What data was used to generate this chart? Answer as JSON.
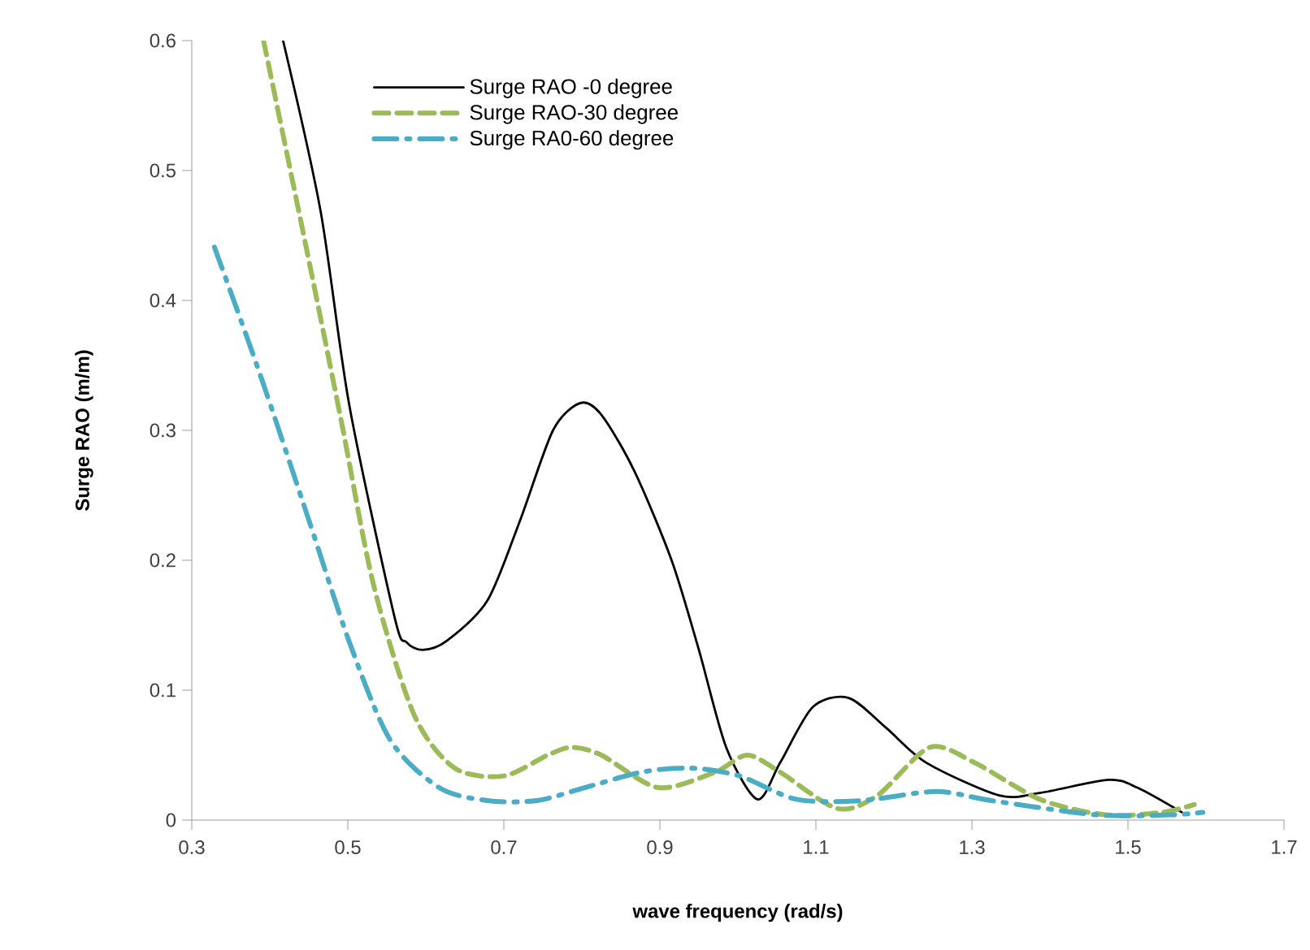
{
  "chart_data": {
    "type": "line",
    "xlabel": "wave frequency (rad/s)",
    "ylabel": "Surge RAO (m/m)",
    "xlim": [
      0.3,
      1.7
    ],
    "xticks": [
      0.3,
      0.5,
      0.7,
      0.9,
      1.1,
      1.3,
      1.5,
      1.7
    ],
    "ylim": [
      0,
      0.6
    ],
    "yticks": [
      0,
      0.1,
      0.2,
      0.3,
      0.4,
      0.5,
      0.6
    ],
    "grid": false,
    "legend": "top",
    "marker": "none",
    "series": [
      {
        "name": "Surge RAO -0 degree",
        "color": "#000000",
        "line_style": "solid",
        "x": [
          0.417,
          0.465,
          0.502,
          0.56,
          0.575,
          0.596,
          0.627,
          0.679,
          0.721,
          0.763,
          0.798,
          0.825,
          0.867,
          0.915,
          0.95,
          0.985,
          1.025,
          1.054,
          1.096,
          1.142,
          1.19,
          1.242,
          1.335,
          1.388,
          1.475,
          1.512,
          1.569
        ],
        "values": [
          0.6,
          0.469,
          0.319,
          0.156,
          0.137,
          0.131,
          0.138,
          0.169,
          0.231,
          0.3,
          0.321,
          0.312,
          0.269,
          0.2,
          0.131,
          0.056,
          0.016,
          0.044,
          0.087,
          0.094,
          0.071,
          0.044,
          0.019,
          0.021,
          0.031,
          0.025,
          0.006
        ]
      },
      {
        "name": "Surge RAO-30 degree",
        "color": "#9bbb59",
        "line_style": "dashed",
        "x": [
          0.392,
          0.45,
          0.492,
          0.533,
          0.585,
          0.637,
          0.7,
          0.756,
          0.787,
          0.825,
          0.898,
          0.971,
          1.012,
          1.054,
          1.127,
          1.179,
          1.246,
          1.304,
          1.387,
          1.471,
          1.544,
          1.585
        ],
        "values": [
          0.6,
          0.431,
          0.306,
          0.181,
          0.081,
          0.04,
          0.034,
          0.05,
          0.056,
          0.05,
          0.025,
          0.037,
          0.05,
          0.037,
          0.009,
          0.019,
          0.056,
          0.044,
          0.016,
          0.004,
          0.006,
          0.012
        ]
      },
      {
        "name": "Surge RA0-60 degree",
        "color": "#4bacc6",
        "line_style": "dashdot",
        "x": [
          0.329,
          0.387,
          0.45,
          0.502,
          0.554,
          0.617,
          0.679,
          0.742,
          0.804,
          0.877,
          0.94,
          1.002,
          1.075,
          1.158,
          1.254,
          1.325,
          1.46,
          1.554,
          1.596
        ],
        "values": [
          0.441,
          0.344,
          0.231,
          0.137,
          0.062,
          0.025,
          0.015,
          0.015,
          0.025,
          0.037,
          0.04,
          0.034,
          0.016,
          0.015,
          0.022,
          0.015,
          0.004,
          0.004,
          0.006
        ]
      }
    ]
  }
}
